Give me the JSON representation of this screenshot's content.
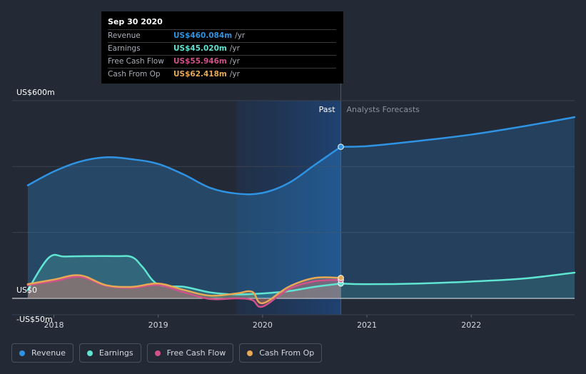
{
  "tooltip": {
    "date": "Sep 30 2020",
    "rows": [
      {
        "label": "Revenue",
        "value": "US$460.084m",
        "unit": "/yr",
        "color": "#2f93e3"
      },
      {
        "label": "Earnings",
        "value": "US$45.020m",
        "unit": "/yr",
        "color": "#5fe5d1"
      },
      {
        "label": "Free Cash Flow",
        "value": "US$55.946m",
        "unit": "/yr",
        "color": "#d1518a"
      },
      {
        "label": "Cash From Op",
        "value": "US$62.418m",
        "unit": "/yr",
        "color": "#e7a954"
      }
    ]
  },
  "legend": [
    {
      "label": "Revenue",
      "color": "#2f93e3"
    },
    {
      "label": "Earnings",
      "color": "#5fe5d1"
    },
    {
      "label": "Free Cash Flow",
      "color": "#d1518a"
    },
    {
      "label": "Cash From Op",
      "color": "#e7a954"
    }
  ],
  "chart_data": {
    "type": "area",
    "y_axis_labels": [
      "US$600m",
      "US$0",
      "-US$50m"
    ],
    "ylim": [
      -50,
      600
    ],
    "x_ticks": [
      "2018",
      "2019",
      "2020",
      "2021",
      "2022"
    ],
    "xlim": [
      2017.6,
      2022.99
    ],
    "past_label": "Past",
    "forecast_label": "Analysts Forecasts",
    "past_end": 2020.75,
    "highlight_band": [
      2019.75,
      2020.75
    ],
    "series": [
      {
        "name": "Revenue",
        "color": "#2f93e3",
        "x": [
          2017.75,
          2018.0,
          2018.25,
          2018.5,
          2018.75,
          2019.0,
          2019.25,
          2019.5,
          2019.75,
          2020.0,
          2020.25,
          2020.5,
          2020.75
        ],
        "values": [
          343,
          385,
          415,
          428,
          422,
          408,
          375,
          335,
          318,
          320,
          350,
          405,
          460
        ]
      },
      {
        "name": "Revenue Forecast",
        "color": "#2f93e3",
        "x": [
          2020.75,
          2021.0,
          2021.5,
          2022.0,
          2022.5,
          2022.99
        ],
        "values": [
          460,
          462,
          478,
          497,
          522,
          550
        ]
      },
      {
        "name": "Earnings",
        "color": "#5fe5d1",
        "x": [
          2017.75,
          2017.95,
          2018.1,
          2018.3,
          2018.6,
          2018.75,
          2018.85,
          2019.0,
          2019.25,
          2019.5,
          2019.75,
          2020.0,
          2020.25,
          2020.5,
          2020.75
        ],
        "values": [
          25,
          123,
          127,
          128,
          128,
          125,
          95,
          42,
          35,
          18,
          12,
          15,
          22,
          35,
          45
        ]
      },
      {
        "name": "Earnings Forecast",
        "color": "#5fe5d1",
        "x": [
          2020.75,
          2021.0,
          2021.5,
          2022.0,
          2022.5,
          2022.99
        ],
        "values": [
          45,
          43,
          45,
          51,
          60,
          78
        ]
      },
      {
        "name": "Free Cash Flow",
        "color": "#d1518a",
        "x": [
          2017.75,
          2018.0,
          2018.25,
          2018.5,
          2018.75,
          2019.0,
          2019.25,
          2019.5,
          2019.75,
          2019.9,
          2020.0,
          2020.25,
          2020.5,
          2020.75
        ],
        "values": [
          40,
          52,
          65,
          38,
          32,
          40,
          18,
          -2,
          0,
          -5,
          -25,
          28,
          52,
          56
        ]
      },
      {
        "name": "Cash From Op",
        "color": "#e7a954",
        "x": [
          2017.75,
          2018.0,
          2018.25,
          2018.5,
          2018.75,
          2019.0,
          2019.25,
          2019.5,
          2019.75,
          2019.9,
          2020.0,
          2020.25,
          2020.5,
          2020.75
        ],
        "values": [
          43,
          57,
          70,
          40,
          35,
          45,
          25,
          8,
          15,
          20,
          -15,
          35,
          62,
          62
        ]
      }
    ]
  }
}
